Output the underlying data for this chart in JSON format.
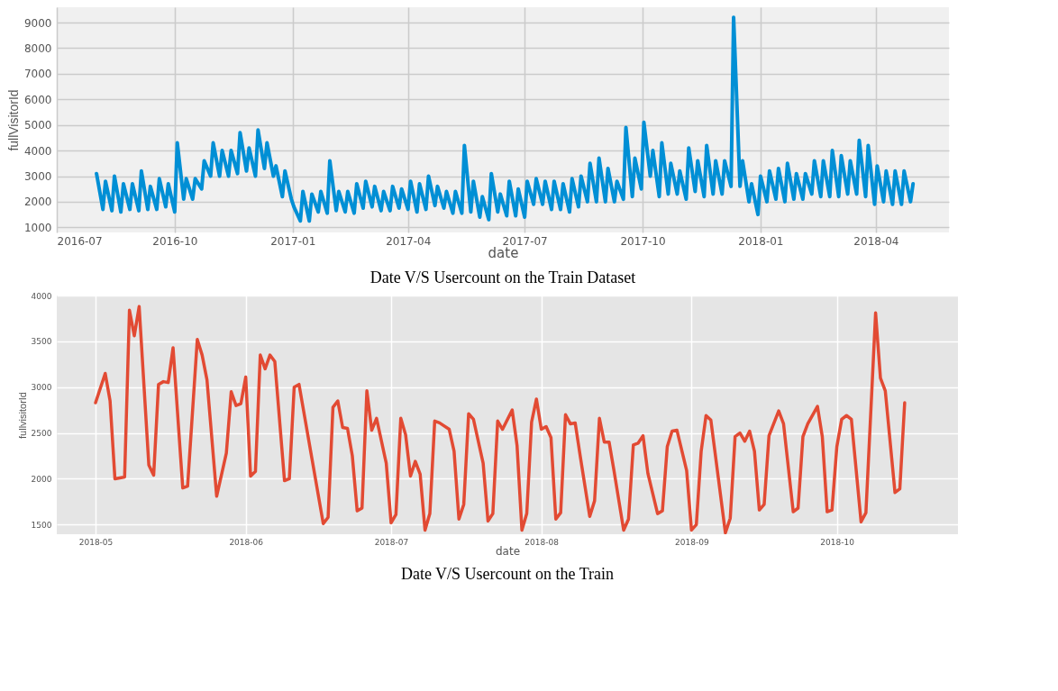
{
  "chart_data": [
    {
      "type": "line",
      "title": "Date V/S Usercount on the Train Dataset",
      "xlabel": "date",
      "ylabel": "fullVisitorId",
      "grid": true,
      "line_style": "solid",
      "xlim": [
        "2016-07-01",
        "2018-05-28"
      ],
      "xticks": [
        "2016-07",
        "2016-10",
        "2017-01",
        "2017-04",
        "2017-07",
        "2017-10",
        "2018-01",
        "2018-04"
      ],
      "ylim": [
        800,
        9600
      ],
      "yticks": [
        1000,
        2000,
        3000,
        4000,
        5000,
        6000,
        7000,
        8000,
        9000
      ],
      "series": [
        {
          "color": "#008fd5",
          "x": [
            "2016-08-01",
            "2016-08-06",
            "2016-08-08",
            "2016-08-13",
            "2016-08-15",
            "2016-08-20",
            "2016-08-22",
            "2016-08-27",
            "2016-08-29",
            "2016-09-03",
            "2016-09-05",
            "2016-09-10",
            "2016-09-12",
            "2016-09-17",
            "2016-09-19",
            "2016-09-24",
            "2016-09-26",
            "2016-10-01",
            "2016-10-03",
            "2016-10-08",
            "2016-10-10",
            "2016-10-15",
            "2016-10-17",
            "2016-10-22",
            "2016-10-24",
            "2016-10-29",
            "2016-10-31",
            "2016-11-05",
            "2016-11-07",
            "2016-11-12",
            "2016-11-14",
            "2016-11-19",
            "2016-11-21",
            "2016-11-26",
            "2016-11-28",
            "2016-12-03",
            "2016-12-05",
            "2016-12-10",
            "2016-12-12",
            "2016-12-17",
            "2016-12-19",
            "2016-12-24",
            "2016-12-26",
            "2016-12-31",
            "2017-01-02",
            "2017-01-07",
            "2017-01-09",
            "2017-01-14",
            "2017-01-16",
            "2017-01-21",
            "2017-01-23",
            "2017-01-28",
            "2017-01-30",
            "2017-02-04",
            "2017-02-06",
            "2017-02-11",
            "2017-02-13",
            "2017-02-18",
            "2017-02-20",
            "2017-02-25",
            "2017-02-27",
            "2017-03-04",
            "2017-03-06",
            "2017-03-11",
            "2017-03-13",
            "2017-03-18",
            "2017-03-20",
            "2017-03-25",
            "2017-03-27",
            "2017-04-01",
            "2017-04-03",
            "2017-04-08",
            "2017-04-10",
            "2017-04-15",
            "2017-04-17",
            "2017-04-22",
            "2017-04-24",
            "2017-04-29",
            "2017-05-01",
            "2017-05-06",
            "2017-05-08",
            "2017-05-13",
            "2017-05-15",
            "2017-05-20",
            "2017-05-22",
            "2017-05-27",
            "2017-05-29",
            "2017-06-03",
            "2017-06-05",
            "2017-06-10",
            "2017-06-12",
            "2017-06-17",
            "2017-06-19",
            "2017-06-24",
            "2017-06-26",
            "2017-07-01",
            "2017-07-03",
            "2017-07-08",
            "2017-07-10",
            "2017-07-15",
            "2017-07-17",
            "2017-07-22",
            "2017-07-24",
            "2017-07-29",
            "2017-07-31",
            "2017-08-05",
            "2017-08-07",
            "2017-08-12",
            "2017-08-14",
            "2017-08-19",
            "2017-08-21",
            "2017-08-26",
            "2017-08-28",
            "2017-09-02",
            "2017-09-04",
            "2017-09-09",
            "2017-09-11",
            "2017-09-16",
            "2017-09-18",
            "2017-09-23",
            "2017-09-25",
            "2017-09-30",
            "2017-10-02",
            "2017-10-07",
            "2017-10-09",
            "2017-10-14",
            "2017-10-16",
            "2017-10-21",
            "2017-10-23",
            "2017-10-28",
            "2017-10-30",
            "2017-11-04",
            "2017-11-06",
            "2017-11-11",
            "2017-11-13",
            "2017-11-18",
            "2017-11-20",
            "2017-11-25",
            "2017-11-27",
            "2017-12-02",
            "2017-12-04",
            "2017-12-09",
            "2017-12-11",
            "2017-12-16",
            "2017-12-18",
            "2017-12-23",
            "2017-12-25",
            "2017-12-30",
            "2018-01-01",
            "2018-01-06",
            "2018-01-08",
            "2018-01-13",
            "2018-01-15",
            "2018-01-20",
            "2018-01-22",
            "2018-01-27",
            "2018-01-29",
            "2018-02-03",
            "2018-02-05",
            "2018-02-10",
            "2018-02-12",
            "2018-02-17",
            "2018-02-19",
            "2018-02-24",
            "2018-02-26",
            "2018-03-03",
            "2018-03-05",
            "2018-03-10",
            "2018-03-12",
            "2018-03-17",
            "2018-03-19",
            "2018-03-24",
            "2018-03-26",
            "2018-03-31",
            "2018-04-02",
            "2018-04-07",
            "2018-04-09",
            "2018-04-14",
            "2018-04-16",
            "2018-04-21",
            "2018-04-23",
            "2018-04-28",
            "2018-04-30"
          ],
          "values": [
            3100,
            1700,
            2800,
            1650,
            3000,
            1600,
            2700,
            1700,
            2700,
            1650,
            3200,
            1700,
            2600,
            1700,
            2900,
            1800,
            2700,
            1600,
            4300,
            2100,
            2900,
            2100,
            2900,
            2500,
            3600,
            3000,
            4300,
            3000,
            4000,
            3000,
            4000,
            3100,
            4700,
            3200,
            4100,
            3000,
            4800,
            3300,
            4300,
            3000,
            3400,
            2200,
            3200,
            2100,
            1800,
            1250,
            2400,
            1250,
            2300,
            1600,
            2400,
            1550,
            3600,
            1650,
            2400,
            1600,
            2400,
            1550,
            2700,
            1750,
            2800,
            1800,
            2600,
            1650,
            2400,
            1650,
            2600,
            1750,
            2500,
            1700,
            2800,
            1600,
            2700,
            1700,
            3000,
            1850,
            2600,
            1750,
            2400,
            1550,
            2400,
            1550,
            4200,
            1600,
            2800,
            1400,
            2200,
            1300,
            3100,
            1600,
            2300,
            1450,
            2800,
            1450,
            2500,
            1400,
            2800,
            1900,
            2900,
            1900,
            2800,
            1700,
            2800,
            1700,
            2700,
            1600,
            2900,
            1800,
            3000,
            2000,
            3500,
            2000,
            3700,
            2000,
            3300,
            2000,
            2800,
            2100,
            4900,
            2200,
            3700,
            2500,
            5100,
            3000,
            4000,
            2200,
            4300,
            2300,
            3500,
            2300,
            3200,
            2100,
            4100,
            2400,
            3600,
            2200,
            4200,
            2300,
            3600,
            2300,
            3600,
            2600,
            9200,
            2600,
            3600,
            2000,
            2700,
            1500,
            3000,
            2000,
            3200,
            2100,
            3300,
            2000,
            3500,
            2100,
            3100,
            2100,
            3100,
            2300,
            3600,
            2200,
            3600,
            2200,
            4000,
            2200,
            3800,
            2300,
            3600,
            2300,
            4400,
            2200,
            4200,
            1900,
            3400,
            2000,
            3200,
            1900,
            3200,
            1900,
            3200,
            2000,
            2700
          ]
        }
      ]
    },
    {
      "type": "line",
      "title": "Date V/S Usercount on the Train",
      "xlabel": "date",
      "ylabel": "fullvisitorId",
      "grid": true,
      "line_style": "solid",
      "xlim": [
        "2018-04-23",
        "2018-10-26"
      ],
      "xticks": [
        "2018-05",
        "2018-06",
        "2018-07",
        "2018-08",
        "2018-09",
        "2018-10"
      ],
      "ylim": [
        1395,
        4000
      ],
      "yticks": [
        1500,
        2000,
        2500,
        3000,
        3500,
        4000
      ],
      "series": [
        {
          "color": "#e24a33",
          "x": [
            "2018-05-01",
            "2018-05-03",
            "2018-05-04",
            "2018-05-05",
            "2018-05-07",
            "2018-05-08",
            "2018-05-09",
            "2018-05-10",
            "2018-05-12",
            "2018-05-13",
            "2018-05-14",
            "2018-05-15",
            "2018-05-16",
            "2018-05-17",
            "2018-05-19",
            "2018-05-20",
            "2018-05-22",
            "2018-05-23",
            "2018-05-24",
            "2018-05-26",
            "2018-05-28",
            "2018-05-29",
            "2018-05-30",
            "2018-05-31",
            "2018-06-01",
            "2018-06-02",
            "2018-06-03",
            "2018-06-04",
            "2018-06-05",
            "2018-06-06",
            "2018-06-07",
            "2018-06-09",
            "2018-06-10",
            "2018-06-11",
            "2018-06-12",
            "2018-06-17",
            "2018-06-18",
            "2018-06-19",
            "2018-06-20",
            "2018-06-21",
            "2018-06-22",
            "2018-06-23",
            "2018-06-24",
            "2018-06-25",
            "2018-06-26",
            "2018-06-27",
            "2018-06-28",
            "2018-06-30",
            "2018-07-01",
            "2018-07-02",
            "2018-07-03",
            "2018-07-04",
            "2018-07-05",
            "2018-07-06",
            "2018-07-07",
            "2018-07-08",
            "2018-07-09",
            "2018-07-10",
            "2018-07-11",
            "2018-07-13",
            "2018-07-14",
            "2018-07-15",
            "2018-07-16",
            "2018-07-17",
            "2018-07-18",
            "2018-07-20",
            "2018-07-21",
            "2018-07-22",
            "2018-07-23",
            "2018-07-24",
            "2018-07-26",
            "2018-07-27",
            "2018-07-28",
            "2018-07-29",
            "2018-07-30",
            "2018-07-31",
            "2018-08-01",
            "2018-08-02",
            "2018-08-03",
            "2018-08-04",
            "2018-08-05",
            "2018-08-06",
            "2018-08-07",
            "2018-08-08",
            "2018-08-09",
            "2018-08-11",
            "2018-08-12",
            "2018-08-13",
            "2018-08-14",
            "2018-08-15",
            "2018-08-16",
            "2018-08-18",
            "2018-08-19",
            "2018-08-20",
            "2018-08-21",
            "2018-08-22",
            "2018-08-23",
            "2018-08-25",
            "2018-08-26",
            "2018-08-27",
            "2018-08-28",
            "2018-08-29",
            "2018-08-31",
            "2018-09-01",
            "2018-09-02",
            "2018-09-03",
            "2018-09-04",
            "2018-09-05",
            "2018-09-06",
            "2018-09-08",
            "2018-09-09",
            "2018-09-10",
            "2018-09-11",
            "2018-09-12",
            "2018-09-13",
            "2018-09-14",
            "2018-09-15",
            "2018-09-16",
            "2018-09-17",
            "2018-09-19",
            "2018-09-20",
            "2018-09-22",
            "2018-09-23",
            "2018-09-24",
            "2018-09-25",
            "2018-09-27",
            "2018-09-28",
            "2018-09-29",
            "2018-09-30",
            "2018-10-01",
            "2018-10-02",
            "2018-10-03",
            "2018-10-04",
            "2018-10-06",
            "2018-10-07",
            "2018-10-09",
            "2018-10-10",
            "2018-10-11",
            "2018-10-13",
            "2018-10-14",
            "2018-10-15"
          ],
          "values": [
            2830,
            3150,
            2850,
            2000,
            2020,
            3840,
            3560,
            3880,
            2150,
            2040,
            3030,
            3060,
            3050,
            3430,
            1900,
            1920,
            3520,
            3350,
            3080,
            1810,
            2280,
            2950,
            2800,
            2820,
            3110,
            2030,
            2080,
            3350,
            3200,
            3350,
            3280,
            1980,
            2000,
            3000,
            3030,
            1510,
            1580,
            2780,
            2850,
            2560,
            2550,
            2250,
            1650,
            1680,
            2960,
            2530,
            2660,
            2170,
            1520,
            1610,
            2660,
            2480,
            2030,
            2190,
            2050,
            1440,
            1620,
            2630,
            2610,
            2540,
            2300,
            1560,
            1720,
            2710,
            2650,
            2170,
            1540,
            1620,
            2630,
            2540,
            2750,
            2360,
            1440,
            1620,
            2620,
            2870,
            2540,
            2570,
            2450,
            1560,
            1630,
            2700,
            2600,
            2610,
            2260,
            1590,
            1760,
            2660,
            2400,
            2400,
            2090,
            1440,
            1560,
            2370,
            2390,
            2470,
            2060,
            1620,
            1650,
            2350,
            2520,
            2530,
            2090,
            1440,
            1500,
            2300,
            2690,
            2640,
            2230,
            1410,
            1570,
            2460,
            2500,
            2410,
            2520,
            2300,
            1660,
            1720,
            2470,
            2740,
            2600,
            1640,
            1680,
            2460,
            2600,
            2790,
            2460,
            1640,
            1660,
            2350,
            2650,
            2690,
            2650,
            1530,
            1630,
            3810,
            3100,
            2960,
            1850,
            1890,
            2830
          ]
        }
      ]
    }
  ]
}
